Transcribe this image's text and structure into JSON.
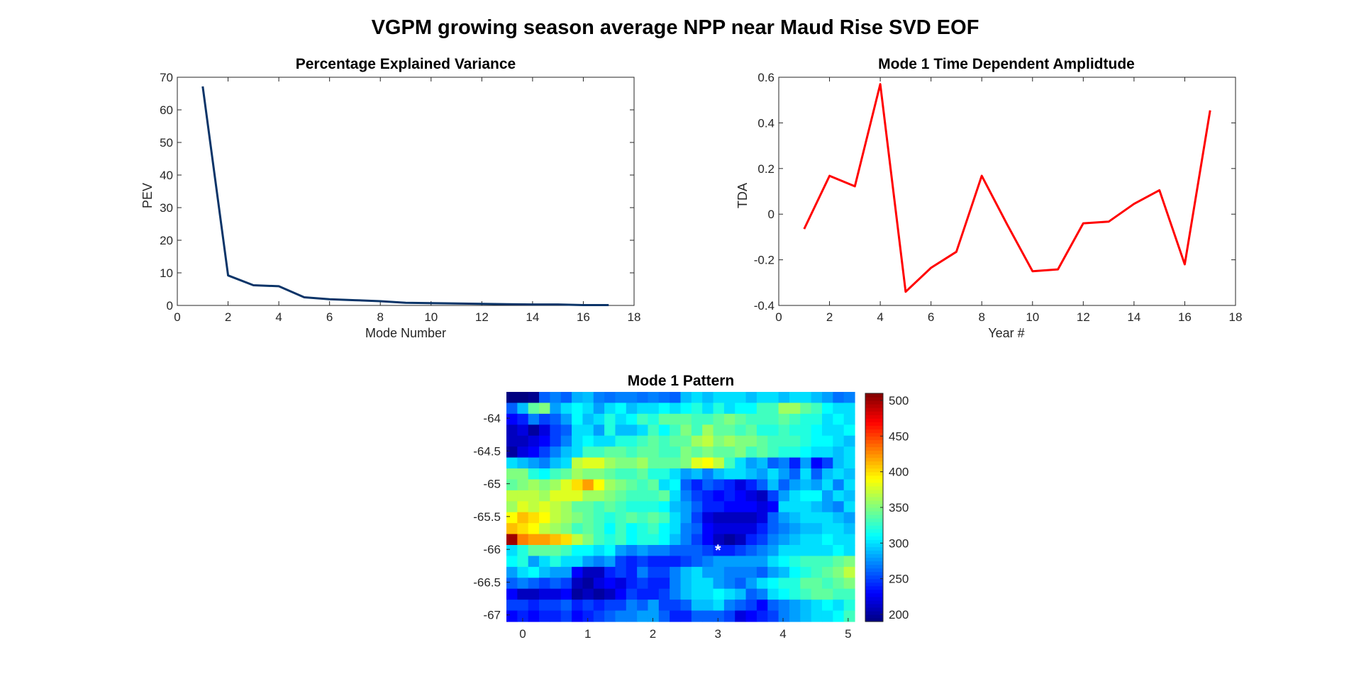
{
  "figure": {
    "title": "VGPM growing season average NPP near Maud Rise SVD EOF"
  },
  "chart_data": [
    {
      "type": "line",
      "title": "Percentage Explained Variance",
      "xlabel": "Mode Number",
      "ylabel": "PEV",
      "xlim": [
        0,
        18
      ],
      "ylim": [
        0,
        70
      ],
      "xticks": [
        0,
        2,
        4,
        6,
        8,
        10,
        12,
        14,
        16,
        18
      ],
      "yticks": [
        0,
        10,
        20,
        30,
        40,
        50,
        60,
        70
      ],
      "color": "#0b3468",
      "grid": false,
      "x": [
        1,
        2,
        3,
        4,
        5,
        6,
        7,
        8,
        9,
        10,
        11,
        12,
        13,
        14,
        15,
        16,
        17
      ],
      "y": [
        67.2,
        9.2,
        6.2,
        5.9,
        2.5,
        1.9,
        1.6,
        1.3,
        0.8,
        0.7,
        0.6,
        0.5,
        0.4,
        0.3,
        0.3,
        0.1,
        0.1
      ]
    },
    {
      "type": "line",
      "title": "Mode 1 Time Dependent Amplidtude",
      "xlabel": "Year #",
      "ylabel": "TDA",
      "xlim": [
        0,
        18
      ],
      "ylim": [
        -0.4,
        0.6
      ],
      "xticks": [
        0,
        2,
        4,
        6,
        8,
        10,
        12,
        14,
        16,
        18
      ],
      "yticks": [
        -0.4,
        -0.2,
        0,
        0.2,
        0.4,
        0.6
      ],
      "ytick_labels": [
        "-0.4",
        "-0.2",
        "0",
        "0.2",
        "0.4",
        "0.6"
      ],
      "color": "#ff0000",
      "grid": false,
      "x": [
        1,
        2,
        3,
        4,
        5,
        6,
        7,
        8,
        9,
        10,
        11,
        12,
        13,
        14,
        15,
        16,
        17
      ],
      "y": [
        -0.065,
        0.168,
        0.122,
        0.57,
        -0.34,
        -0.235,
        -0.165,
        0.168,
        -0.045,
        -0.25,
        -0.242,
        -0.04,
        -0.033,
        0.045,
        0.105,
        -0.22,
        0.455
      ]
    },
    {
      "type": "heatmap",
      "title": "Mode 1 Pattern",
      "xlabel": "",
      "ylabel": "",
      "colormap": "jet",
      "xlim": [
        -0.25,
        5.1
      ],
      "ylim": [
        -67.1,
        -63.6
      ],
      "xticks": [
        0,
        1,
        2,
        3,
        4,
        5
      ],
      "yticks": [
        -64,
        -64.5,
        -65,
        -65.5,
        -66,
        -66.5,
        -67
      ],
      "ytick_labels": [
        "-64",
        "-64.5",
        "-65",
        "-65.5",
        "-66",
        "-66.5",
        "-67"
      ],
      "colorbar": {
        "range": [
          190,
          510
        ],
        "ticks": [
          200,
          250,
          300,
          350,
          400,
          450,
          500
        ]
      },
      "marker": {
        "symbol": "*",
        "x": 3.0,
        "y": -66.0,
        "color": "#ffffff"
      },
      "rows_top_to_bottom": [
        [
          190,
          190,
          195,
          260,
          270,
          260,
          285,
          290,
          270,
          265,
          270,
          270,
          265,
          270,
          265,
          260,
          290,
          300,
          290,
          300,
          300,
          300,
          290,
          300,
          300,
          290,
          300,
          300,
          290,
          280,
          265,
          270
        ],
        [
          260,
          290,
          340,
          350,
          280,
          300,
          310,
          300,
          280,
          300,
          310,
          290,
          300,
          300,
          310,
          300,
          310,
          320,
          300,
          320,
          300,
          310,
          310,
          330,
          330,
          360,
          360,
          340,
          330,
          310,
          300,
          300
        ],
        [
          230,
          240,
          270,
          250,
          260,
          280,
          310,
          290,
          300,
          320,
          300,
          310,
          330,
          320,
          340,
          340,
          340,
          330,
          330,
          340,
          350,
          340,
          330,
          330,
          330,
          340,
          330,
          320,
          320,
          300,
          310,
          300
        ],
        [
          210,
          220,
          200,
          220,
          250,
          260,
          300,
          300,
          280,
          320,
          290,
          290,
          300,
          330,
          310,
          330,
          350,
          330,
          360,
          340,
          340,
          330,
          340,
          320,
          320,
          330,
          320,
          320,
          310,
          300,
          300,
          310
        ],
        [
          210,
          210,
          220,
          230,
          250,
          270,
          300,
          310,
          300,
          300,
          320,
          320,
          330,
          340,
          330,
          340,
          340,
          360,
          370,
          350,
          360,
          350,
          350,
          340,
          330,
          330,
          330,
          320,
          310,
          310,
          300,
          290
        ],
        [
          200,
          220,
          230,
          250,
          270,
          290,
          300,
          330,
          330,
          340,
          340,
          330,
          340,
          340,
          330,
          330,
          350,
          340,
          350,
          340,
          340,
          350,
          330,
          340,
          330,
          320,
          320,
          310,
          300,
          300,
          290,
          300
        ],
        [
          300,
          290,
          280,
          270,
          290,
          300,
          370,
          380,
          380,
          360,
          350,
          350,
          360,
          340,
          340,
          340,
          350,
          380,
          390,
          370,
          330,
          300,
          280,
          290,
          260,
          270,
          240,
          280,
          230,
          250,
          290,
          300
        ],
        [
          350,
          350,
          320,
          310,
          330,
          340,
          360,
          350,
          350,
          340,
          330,
          330,
          340,
          320,
          320,
          300,
          280,
          290,
          270,
          290,
          300,
          300,
          290,
          280,
          300,
          280,
          260,
          300,
          260,
          290,
          300,
          290
        ],
        [
          340,
          350,
          360,
          350,
          360,
          380,
          400,
          420,
          390,
          360,
          350,
          340,
          330,
          340,
          300,
          310,
          260,
          240,
          260,
          250,
          240,
          220,
          240,
          260,
          290,
          260,
          280,
          290,
          280,
          300,
          270,
          300
        ],
        [
          370,
          370,
          370,
          360,
          380,
          380,
          380,
          360,
          360,
          350,
          340,
          330,
          330,
          330,
          340,
          300,
          270,
          250,
          240,
          230,
          240,
          230,
          220,
          210,
          250,
          280,
          300,
          310,
          310,
          280,
          300,
          290
        ],
        [
          360,
          380,
          370,
          380,
          370,
          360,
          340,
          340,
          330,
          340,
          330,
          320,
          320,
          320,
          310,
          290,
          280,
          260,
          240,
          240,
          230,
          230,
          230,
          220,
          230,
          300,
          300,
          300,
          290,
          280,
          270,
          300
        ],
        [
          390,
          410,
          400,
          390,
          370,
          360,
          350,
          340,
          330,
          320,
          330,
          340,
          330,
          340,
          330,
          300,
          280,
          250,
          220,
          210,
          210,
          210,
          210,
          220,
          260,
          280,
          290,
          300,
          300,
          300,
          290,
          280
        ],
        [
          410,
          400,
          390,
          370,
          360,
          350,
          330,
          340,
          330,
          310,
          330,
          310,
          320,
          330,
          310,
          300,
          270,
          260,
          230,
          220,
          220,
          220,
          220,
          240,
          260,
          270,
          280,
          290,
          290,
          300,
          300,
          290
        ],
        [
          500,
          430,
          420,
          420,
          410,
          400,
          370,
          350,
          330,
          320,
          330,
          310,
          320,
          320,
          310,
          290,
          270,
          250,
          230,
          210,
          200,
          210,
          240,
          250,
          270,
          280,
          290,
          300,
          300,
          310,
          300,
          300
        ],
        [
          300,
          320,
          340,
          340,
          340,
          330,
          310,
          310,
          300,
          310,
          280,
          270,
          280,
          270,
          270,
          260,
          260,
          260,
          250,
          240,
          240,
          250,
          260,
          270,
          280,
          300,
          300,
          300,
          300,
          300,
          310,
          300
        ],
        [
          310,
          320,
          280,
          300,
          320,
          300,
          300,
          280,
          270,
          280,
          250,
          240,
          250,
          240,
          240,
          240,
          250,
          260,
          270,
          280,
          280,
          280,
          280,
          280,
          300,
          310,
          320,
          330,
          330,
          330,
          340,
          350
        ],
        [
          280,
          300,
          310,
          290,
          280,
          280,
          230,
          210,
          210,
          240,
          250,
          240,
          270,
          250,
          250,
          270,
          290,
          300,
          280,
          280,
          270,
          270,
          270,
          260,
          280,
          290,
          310,
          320,
          330,
          340,
          350,
          370
        ],
        [
          260,
          270,
          260,
          250,
          260,
          250,
          210,
          200,
          220,
          230,
          220,
          240,
          250,
          240,
          240,
          270,
          290,
          300,
          300,
          280,
          270,
          260,
          280,
          300,
          310,
          320,
          320,
          340,
          340,
          330,
          340,
          350
        ],
        [
          230,
          210,
          210,
          220,
          220,
          230,
          200,
          210,
          200,
          210,
          230,
          250,
          240,
          240,
          250,
          270,
          290,
          300,
          300,
          310,
          300,
          290,
          260,
          270,
          300,
          310,
          320,
          330,
          340,
          340,
          330,
          330
        ],
        [
          250,
          250,
          240,
          250,
          250,
          260,
          240,
          250,
          240,
          250,
          250,
          270,
          260,
          280,
          250,
          250,
          260,
          290,
          290,
          300,
          270,
          260,
          250,
          230,
          260,
          270,
          280,
          290,
          300,
          310,
          300,
          320
        ],
        [
          230,
          240,
          230,
          240,
          240,
          250,
          230,
          240,
          250,
          260,
          270,
          270,
          280,
          280,
          260,
          240,
          240,
          260,
          260,
          260,
          250,
          220,
          230,
          240,
          250,
          270,
          280,
          290,
          300,
          300,
          310,
          330
        ]
      ]
    }
  ]
}
